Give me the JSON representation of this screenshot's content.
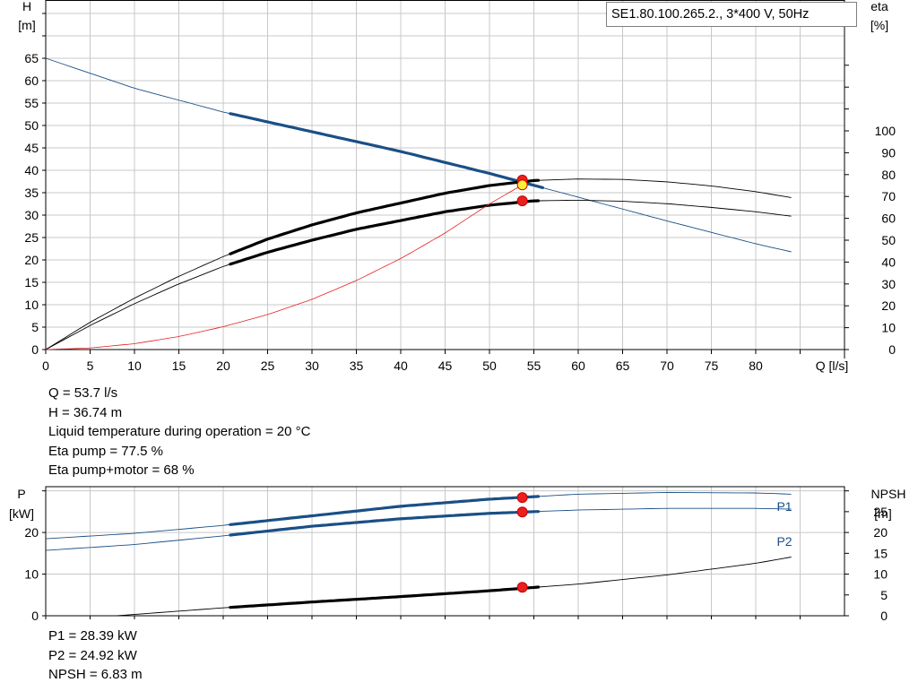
{
  "chart_data": [
    {
      "type": "line",
      "title": "SE1.80.100.265.2., 3*400 V, 50Hz",
      "xlabel": "Q [l/s]",
      "ylabel_left": [
        "H",
        "[m]"
      ],
      "ylabel_right": [
        "eta",
        "[%]"
      ],
      "xlim": [
        0,
        90
      ],
      "ylim_left": [
        0,
        78
      ],
      "ylim_right": [
        0,
        100
      ],
      "x_ticks": [
        0,
        5,
        10,
        15,
        20,
        25,
        30,
        35,
        40,
        45,
        50,
        55,
        60,
        65,
        70,
        75,
        80
      ],
      "y_ticks_left": [
        0,
        5,
        10,
        15,
        20,
        25,
        30,
        35,
        40,
        45,
        50,
        55,
        60,
        65
      ],
      "y_ticks_right": [
        0,
        10,
        20,
        30,
        40,
        50,
        60,
        70,
        80,
        90,
        100
      ],
      "grid": true,
      "duty_range": [
        20.8,
        56
      ],
      "series": [
        {
          "axis": "left",
          "color": "#1a4f86",
          "x": [
            0,
            10,
            20,
            30,
            40,
            50,
            60,
            70,
            80,
            84
          ],
          "y": [
            65,
            58.3,
            53,
            48.6,
            44.2,
            39.3,
            34,
            28.7,
            23.6,
            21.8
          ]
        },
        {
          "axis": "right",
          "color": "#000000",
          "x": [
            0,
            5,
            10,
            15,
            20,
            25,
            30,
            35,
            40,
            45,
            50,
            55,
            60,
            65,
            70,
            75,
            80,
            84
          ],
          "y": [
            0,
            12.5,
            23.5,
            33.5,
            42.5,
            50.5,
            57,
            62.5,
            67,
            71.5,
            75,
            77.3,
            78,
            77.8,
            76.7,
            74.8,
            72.2,
            69.5
          ]
        },
        {
          "axis": "right",
          "color": "#000000",
          "x": [
            0,
            5,
            10,
            15,
            20,
            25,
            30,
            35,
            40,
            45,
            50,
            55,
            60,
            65,
            70,
            75,
            80,
            84
          ],
          "y": [
            0,
            11,
            21,
            30,
            38,
            44.5,
            50,
            55,
            59,
            63,
            66,
            68,
            68.3,
            67.8,
            66.7,
            65,
            63,
            61
          ]
        },
        {
          "axis": "left",
          "color": "#e62020",
          "x": [
            0,
            5,
            10,
            15,
            20,
            25,
            30,
            35,
            40,
            45,
            50,
            53.7
          ],
          "y": [
            0,
            0.35,
            1.3,
            2.9,
            5.1,
            7.8,
            11.2,
            15.4,
            20.3,
            26,
            32.5,
            36.74
          ]
        }
      ],
      "duty_points": [
        {
          "x": 53.7,
          "y_right": 77.5,
          "color": "#e82020"
        },
        {
          "x": 53.7,
          "y_right": 68,
          "color": "#e82020"
        },
        {
          "x": 53.7,
          "y_left": 36.74,
          "color": "#ffef32"
        }
      ]
    },
    {
      "type": "line",
      "ylabel_left": [
        "P",
        "[kW]"
      ],
      "ylabel_right": [
        "NPSH",
        "[m]"
      ],
      "xlim": [
        0,
        90
      ],
      "ylim_left": [
        0,
        31
      ],
      "ylim_right": [
        0,
        31
      ],
      "y_ticks_left": [
        0,
        10,
        20
      ],
      "y_ticks_right": [
        0,
        5,
        10,
        15,
        20,
        25
      ],
      "grid": true,
      "series": [
        {
          "name": "P1",
          "axis": "left",
          "color": "#1a4f86",
          "x": [
            0,
            10,
            20,
            30,
            40,
            50,
            60,
            70,
            80,
            84
          ],
          "y": [
            18.5,
            19.8,
            21.7,
            24,
            26.3,
            28,
            29.2,
            29.6,
            29.5,
            29.2
          ]
        },
        {
          "name": "P2",
          "axis": "left",
          "color": "#1a4f86",
          "x": [
            0,
            10,
            20,
            30,
            40,
            50,
            60,
            70,
            80,
            84
          ],
          "y": [
            15.7,
            17.1,
            19.2,
            21.5,
            23.3,
            24.6,
            25.4,
            25.8,
            25.8,
            25.6
          ]
        },
        {
          "axis": "right",
          "color": "#000000",
          "x": [
            8,
            20,
            30,
            40,
            50,
            60,
            70,
            80,
            84
          ],
          "y": [
            0,
            1.9,
            3.3,
            4.6,
            6,
            7.6,
            9.8,
            12.6,
            14.1
          ]
        }
      ],
      "duty_points": [
        {
          "x": 53.7,
          "y_left": 28.39,
          "color": "#e82020"
        },
        {
          "x": 53.7,
          "y_left": 24.92,
          "color": "#e82020"
        },
        {
          "x": 53.7,
          "y_right": 6.83,
          "color": "#e82020"
        }
      ]
    }
  ],
  "readout_top": [
    "Q = 53.7 l/s",
    "H = 36.74 m",
    "Liquid temperature during operation = 20 °C",
    "Eta pump = 77.5 %",
    "Eta pump+motor = 68 %"
  ],
  "readout_bottom": [
    "P1 = 28.39 kW",
    "P2 = 24.92 kW",
    "NPSH = 6.83 m"
  ]
}
